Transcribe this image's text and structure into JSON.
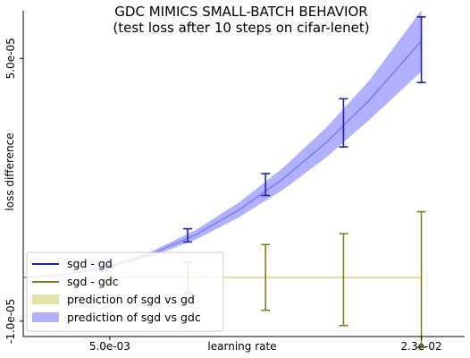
{
  "chart_data": {
    "type": "line",
    "title": "GDC MIMICS SMALL-BATCH BEHAVIOR",
    "subtitle": "(test loss after 10 steps on cifar-lenet)",
    "xlabel": "learning rate",
    "ylabel": "loss difference",
    "x_tick_labels": [
      "5.0e-03",
      "2.3e-02"
    ],
    "x_ticks": [
      0.005,
      0.023
    ],
    "y_tick_labels": [
      "-1.0e-05",
      "5.0e-05"
    ],
    "y_ticks": [
      -1e-05,
      5e-05
    ],
    "xlim": [
      0.0,
      0.0255
    ],
    "ylim": [
      -1.35e-05,
      6.09e-05
    ],
    "grid": false,
    "legend_position": "lower-left",
    "series": [
      {
        "name": "sgd - gd",
        "kind": "errorbar",
        "color": "#1f1fa8",
        "x": [
          0.005,
          0.0095,
          0.014,
          0.0185,
          0.023
        ],
        "y": [
          2.5e-06,
          9.6e-06,
          2.12e-05,
          3.53e-05,
          5.2e-05
        ],
        "yerr": [
          3e-07,
          1.5e-06,
          2.5e-06,
          5.5e-06,
          7.5e-06
        ]
      },
      {
        "name": "sgd - gdc",
        "kind": "errorbar",
        "color": "#808020",
        "x": [
          0.005,
          0.0095,
          0.014,
          0.0185,
          0.023
        ],
        "y": [
          0.0,
          0.0,
          0.0,
          -5e-07,
          -5e-07
        ],
        "yerr": [
          3e-07,
          3.5e-06,
          7.5e-06,
          1.05e-05,
          1.55e-05
        ]
      },
      {
        "name": "prediction of sgd vs gd",
        "kind": "band",
        "color": "#c8c864",
        "x": [
          0.0,
          0.023
        ],
        "y": [
          0.0,
          0.0
        ],
        "yerr": [
          1e-07,
          1e-07
        ]
      },
      {
        "name": "prediction of sgd vs gdc",
        "kind": "band",
        "color": "#6464ff",
        "x": [
          0.0,
          0.0025,
          0.005,
          0.0075,
          0.01,
          0.0125,
          0.015,
          0.0175,
          0.02,
          0.023
        ],
        "y": [
          0.0,
          7e-07,
          2.5e-06,
          5.5e-06,
          9.8e-06,
          1.55e-05,
          2.25e-05,
          3.08e-05,
          4.05e-05,
          5.4e-05
        ],
        "yerr": [
          0.0,
          1e-07,
          3e-07,
          6e-07,
          1.1e-06,
          1.7e-06,
          2.5e-06,
          3.4e-06,
          4.5e-06,
          7e-06
        ]
      }
    ]
  }
}
